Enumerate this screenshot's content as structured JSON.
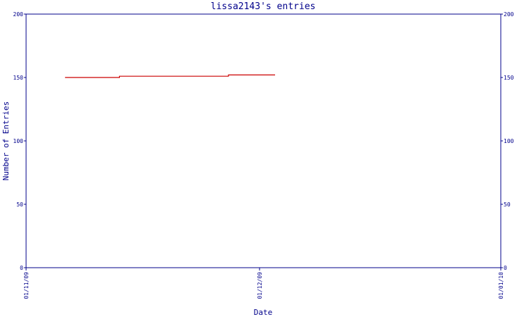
{
  "chart_data": {
    "type": "line",
    "title": "lissa2143's entries",
    "xlabel": "Date",
    "ylabel": "Number of Entries",
    "ylim": [
      0,
      200
    ],
    "y_ticks": [
      0,
      50,
      100,
      150,
      200
    ],
    "x_ticks": [
      "01/11/09",
      "01/12/09",
      "01/01/10"
    ],
    "x_range": [
      "2009-11-01",
      "2010-01-01"
    ],
    "grid": false,
    "series": [
      {
        "color": "#cc0000",
        "points": [
          {
            "x": "2009-11-06",
            "y": 150
          },
          {
            "x": "2009-11-13",
            "y": 150
          },
          {
            "x": "2009-11-13",
            "y": 151
          },
          {
            "x": "2009-11-27",
            "y": 151
          },
          {
            "x": "2009-11-27",
            "y": 152
          },
          {
            "x": "2009-12-03",
            "y": 152
          }
        ]
      }
    ]
  }
}
